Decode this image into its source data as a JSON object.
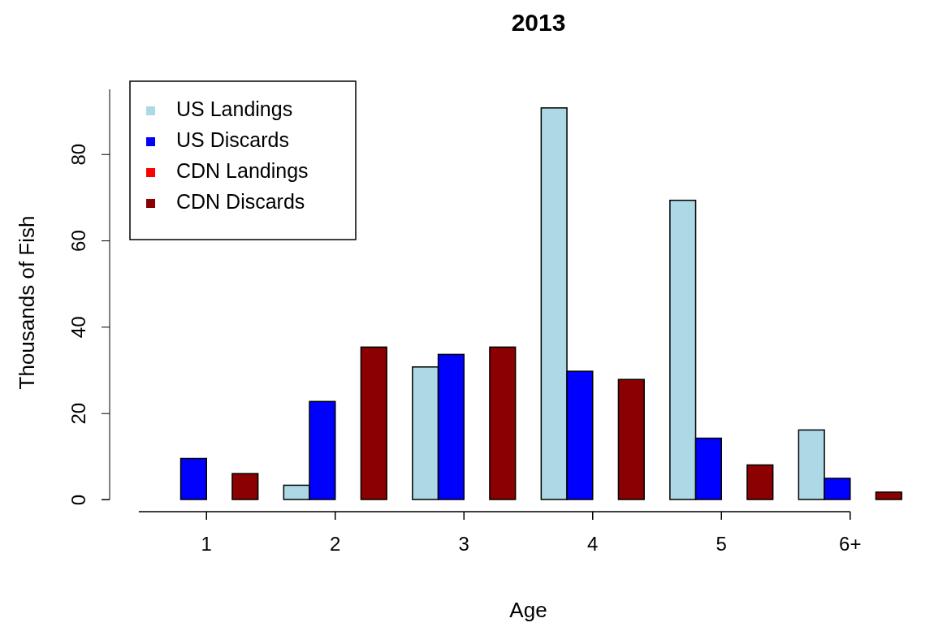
{
  "chart_data": {
    "type": "bar",
    "title": "2013",
    "xlabel": "Age",
    "ylabel": "Thousands of Fish",
    "categories": [
      "1",
      "2",
      "3",
      "4",
      "5",
      "6+"
    ],
    "series": [
      {
        "name": "US Landings",
        "color": "#add8e6",
        "values": [
          0,
          3.3,
          30.7,
          90.7,
          69.3,
          16.1
        ]
      },
      {
        "name": "US Discards",
        "color": "#0000ff",
        "values": [
          9.5,
          22.7,
          33.6,
          29.7,
          14.2,
          4.9
        ]
      },
      {
        "name": "CDN Landings",
        "color": "#ff0000",
        "values": [
          0,
          0,
          0,
          0,
          0,
          0
        ]
      },
      {
        "name": "CDN Discards",
        "color": "#8b0000",
        "values": [
          6,
          35.3,
          35.3,
          27.8,
          8,
          1.7
        ]
      }
    ],
    "ylim": [
      0,
      95
    ],
    "yticks": [
      0,
      20,
      40,
      60,
      80
    ],
    "legend": "top left",
    "grid": false
  }
}
